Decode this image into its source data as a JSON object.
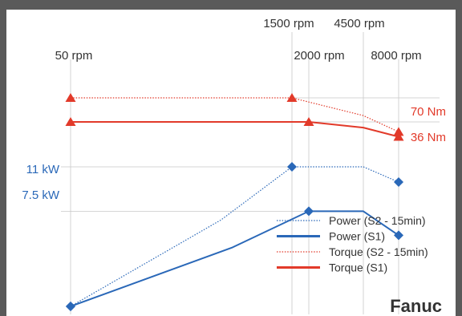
{
  "colors": {
    "power": "#2a68b8",
    "torque": "#e23a2a",
    "guide": "#c8c8c8",
    "outer_frame": "#5a5a5a"
  },
  "brand": "Fanuc",
  "chart_data": {
    "type": "line",
    "x_axis": {
      "tick_labels": [
        "50 rpm",
        "1500 rpm",
        "2000 rpm",
        "4500 rpm",
        "8000 rpm"
      ],
      "x_values": [
        50,
        1500,
        2000,
        4500,
        8000
      ]
    },
    "torque_labels": [
      "70 Nm",
      "36 Nm"
    ],
    "power_labels": [
      "11 kW",
      "7.5 kW"
    ],
    "series": [
      {
        "name": "Power (S2 - 15min)",
        "kind": "power",
        "style": "dotted",
        "points": [
          [
            50,
            0
          ],
          [
            1500,
            11
          ],
          [
            4500,
            11
          ],
          [
            8000,
            9.8
          ]
        ]
      },
      {
        "name": "Power (S1)",
        "kind": "power",
        "style": "solid",
        "points": [
          [
            50,
            0
          ],
          [
            2000,
            7.5
          ],
          [
            4500,
            7.5
          ],
          [
            8000,
            5.6
          ]
        ]
      },
      {
        "name": "Torque (S2 - 15min)",
        "kind": "torque",
        "style": "dotted",
        "points": [
          [
            50,
            70
          ],
          [
            1500,
            70
          ],
          [
            4500,
            45
          ],
          [
            8000,
            22
          ]
        ]
      },
      {
        "name": "Torque (S1)",
        "kind": "torque",
        "style": "solid",
        "points": [
          [
            50,
            36
          ],
          [
            2000,
            36
          ],
          [
            4500,
            28
          ],
          [
            8000,
            15
          ]
        ]
      }
    ],
    "legend": {
      "position": "bottom-right",
      "entries": [
        "Power (S2 - 15min)",
        "Power (S1)",
        "Torque (S2 - 15min)",
        "Torque (S1)"
      ]
    }
  }
}
